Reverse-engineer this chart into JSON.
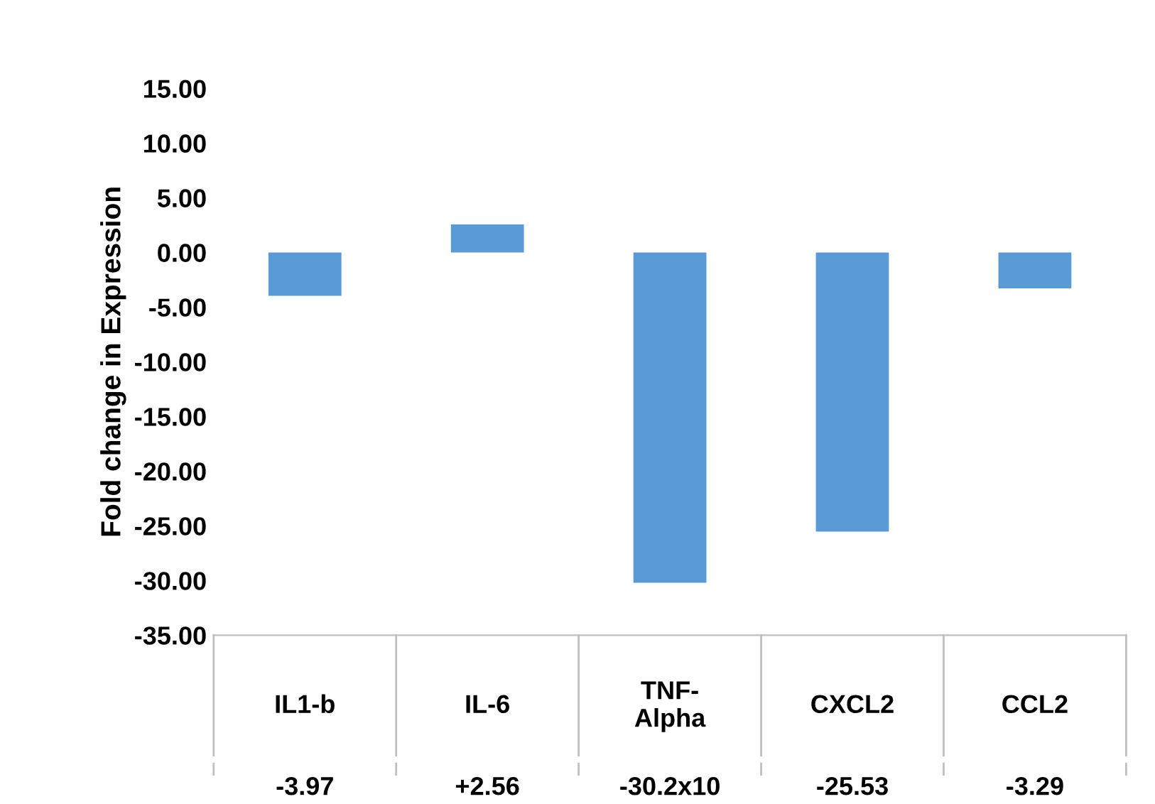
{
  "chart_data": {
    "type": "bar",
    "ylabel": "Fold change in Expression",
    "categories": [
      "IL1-b",
      "IL-6",
      "TNF-\nAlpha",
      "CXCL2",
      "CCL2"
    ],
    "values": [
      -3.97,
      2.56,
      -30.2,
      -25.53,
      -3.29
    ],
    "value_labels": [
      "-3.97",
      "+2.56",
      "-30.2x10",
      "-25.53",
      "-3.29"
    ],
    "color": "#5b9bd5",
    "ylim": [
      -35,
      15
    ],
    "yticks": [
      {
        "value": 15,
        "label": "15.00"
      },
      {
        "value": 10,
        "label": "10.00"
      },
      {
        "value": 5,
        "label": "5.00"
      },
      {
        "value": 0,
        "label": "0.00"
      },
      {
        "value": -5,
        "label": "-5.00"
      },
      {
        "value": -10,
        "label": "-10.00"
      },
      {
        "value": -15,
        "label": "-15.00"
      },
      {
        "value": -20,
        "label": "-20.00"
      },
      {
        "value": -25,
        "label": "-25.00"
      },
      {
        "value": -30,
        "label": "-30.00"
      },
      {
        "value": -35,
        "label": "-35.00"
      }
    ],
    "grid": false,
    "legend": false
  }
}
